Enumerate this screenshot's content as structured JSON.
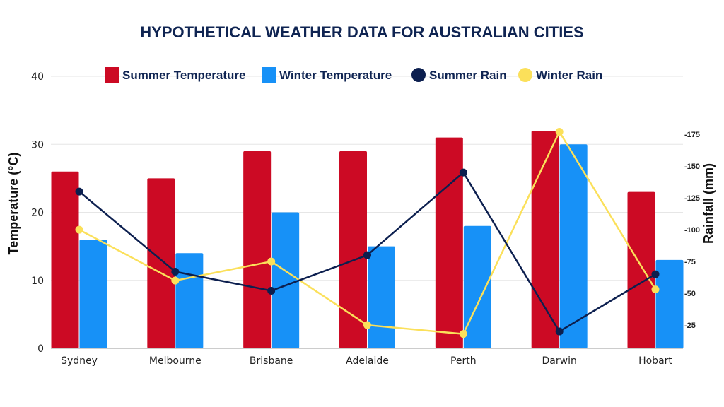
{
  "chart_data": {
    "type": "bar+line",
    "title": "HYPOTHETICAL WEATHER DATA FOR AUSTRALIAN CITIES",
    "categories": [
      "Sydney",
      "Melbourne",
      "Brisbane",
      "Adelaide",
      "Perth",
      "Darwin",
      "Hobart"
    ],
    "ylabel": "Temperature (°C)",
    "y2label": "Rainfall (mm)",
    "ylim": [
      0,
      40
    ],
    "yticks": [
      0,
      10,
      20,
      30,
      40
    ],
    "y2lim": [
      6.7,
      220.6
    ],
    "y2ticks": [
      25,
      50,
      75,
      100,
      125,
      150,
      175
    ],
    "y2tick_labels": [
      "-25",
      "-50",
      "-75",
      "-100",
      "-125",
      "-150",
      "-175"
    ],
    "grid": true,
    "legend_position": "top",
    "series": [
      {
        "name": "Summer Temperature",
        "kind": "bar",
        "axis": "left",
        "color": "#cc0a24",
        "values": [
          26,
          25,
          29,
          29,
          31,
          32,
          23
        ]
      },
      {
        "name": "Winter Temperature",
        "kind": "bar",
        "axis": "left",
        "color": "#1791f7",
        "values": [
          16,
          14,
          20,
          15,
          18,
          30,
          13
        ]
      },
      {
        "name": "Summer Rain",
        "kind": "line",
        "axis": "right",
        "color": "#0c1f4f",
        "values": [
          130,
          67,
          52,
          80,
          145,
          20,
          65
        ]
      },
      {
        "name": "Winter Rain",
        "kind": "line",
        "axis": "right",
        "color": "#fbe05a",
        "values": [
          100,
          60,
          75,
          25,
          18,
          177,
          53
        ]
      }
    ]
  }
}
